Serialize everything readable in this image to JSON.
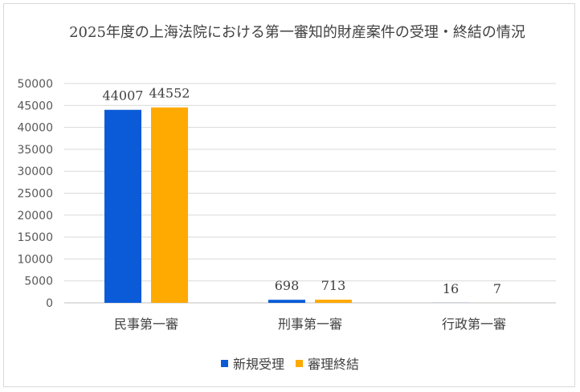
{
  "chart_data": {
    "type": "bar",
    "title": "2025年度の上海法院における第一審知的財産案件の受理・終結の情況",
    "categories": [
      "民事第一審",
      "刑事第一審",
      "行政第一審"
    ],
    "series": [
      {
        "name": "新規受理",
        "values": [
          44007,
          698,
          16
        ],
        "color": "#0b5bd8"
      },
      {
        "name": "審理終結",
        "values": [
          44552,
          713,
          7
        ],
        "color": "#ffaa00"
      }
    ],
    "ylim": [
      0,
      50000
    ],
    "yticks": [
      "0",
      "5000",
      "10000",
      "15000",
      "20000",
      "25000",
      "30000",
      "35000",
      "40000",
      "45000",
      "50000"
    ],
    "grid": true,
    "legend": "bottom",
    "data_labels": true
  }
}
